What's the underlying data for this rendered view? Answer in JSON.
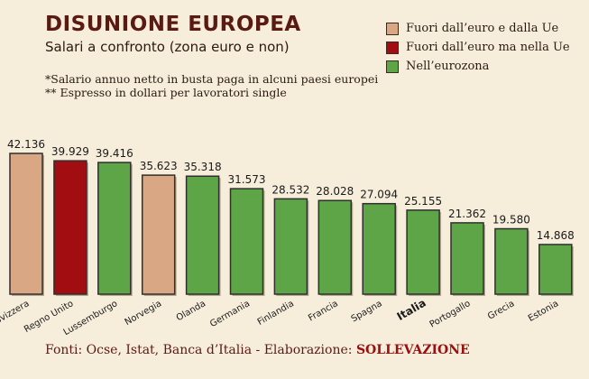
{
  "header": {
    "title": "DISUNIONE EUROPEA",
    "subtitle": "Salari a confronto (zona euro e non)",
    "note1": "*Salario annuo netto in busta paga in alcuni paesi europei",
    "note2": "** Espresso in dollari per lavoratori single"
  },
  "legend": [
    {
      "label": "Fuori dall’euro e dalla Ue",
      "color": "#d9a784"
    },
    {
      "label": "Fuori dall’euro ma nella Ue",
      "color": "#a10d10"
    },
    {
      "label": "Nell’eurozona",
      "color": "#5ea547"
    }
  ],
  "footer": {
    "sources": "Fonti: Ocse, Istat, Banca d’Italia - Elaborazione: ",
    "brand": "SOLLEVAZIONE"
  },
  "chart_data": {
    "type": "bar",
    "categories": [
      "Svizzera",
      "Regno Unito",
      "Lussemburgo",
      "Norvegia",
      "Olanda",
      "Germania",
      "Finlandia",
      "Francia",
      "Spagna",
      "Italia",
      "Portogallo",
      "Grecia",
      "Estonia"
    ],
    "values": [
      42136,
      39929,
      39416,
      35623,
      35318,
      31573,
      28532,
      28028,
      27094,
      25155,
      21362,
      19580,
      14868
    ],
    "value_labels": [
      "42.136",
      "39.929",
      "39.416",
      "35.623",
      "35.318",
      "31.573",
      "28.532",
      "28.028",
      "27.094",
      "25.155",
      "21.362",
      "19.580",
      "14.868"
    ],
    "groups": [
      0,
      1,
      2,
      0,
      2,
      2,
      2,
      2,
      2,
      2,
      2,
      2,
      2
    ],
    "ylim": [
      0,
      42136
    ]
  }
}
